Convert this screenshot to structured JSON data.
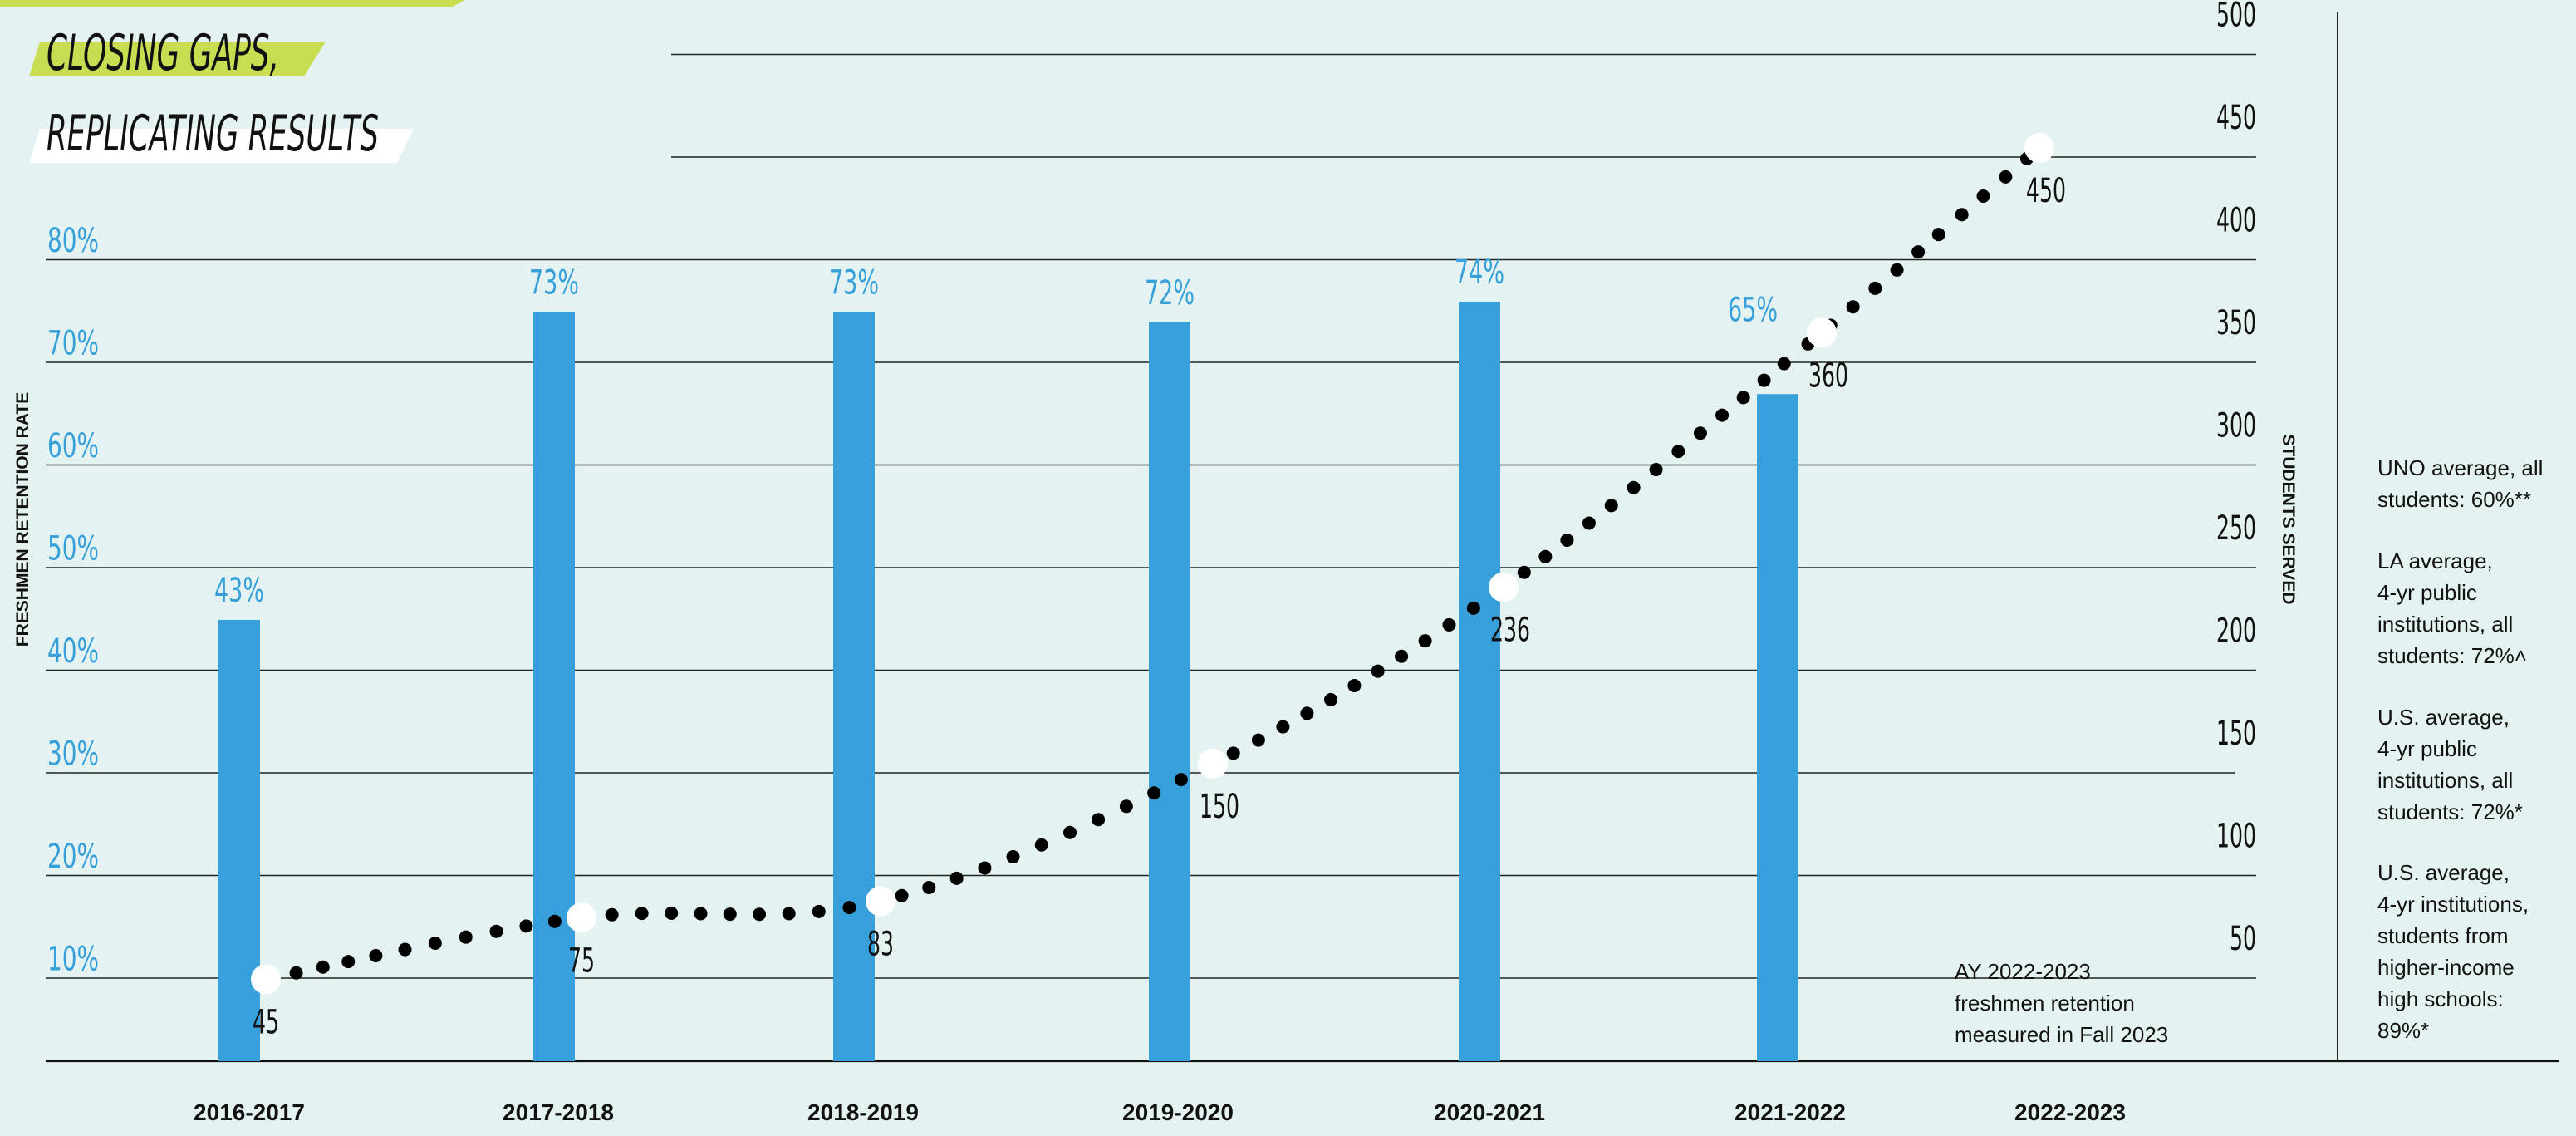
{
  "title": {
    "line1": "CLOSING GAPS,",
    "line2": "REPLICATING RESULTS"
  },
  "colors": {
    "background": "#e4f3f1",
    "bar": "#37a0da",
    "accent_lime": "#c8dd52",
    "text": "#111111"
  },
  "chart_data": {
    "type": "bar",
    "categories": [
      "2016-2017",
      "2017-2018",
      "2018-2019",
      "2019-2020",
      "2020-2021",
      "2021-2022",
      "2022-2023"
    ],
    "series": [
      {
        "values": [
          43,
          73,
          73,
          72,
          74,
          65,
          null
        ],
        "value_labels": [
          "43%",
          "73%",
          "73%",
          "72%",
          "74%",
          "65%",
          ""
        ]
      },
      {
        "values": [
          45,
          75,
          83,
          150,
          236,
          360,
          450
        ],
        "value_labels": [
          "45",
          "75",
          "83",
          "150",
          "236",
          "360",
          "450"
        ]
      }
    ],
    "ylabel": "FRESHMEN RETENTION RATE",
    "y2label": "STUDENTS SERVED",
    "ylim": [
      0,
      100
    ],
    "y2lim": [
      -10,
      500
    ],
    "yticks": [
      "10%",
      "20%",
      "30%",
      "40%",
      "50%",
      "60%",
      "70%",
      "80%"
    ],
    "y2ticks": [
      "50",
      "100",
      "150",
      "200",
      "250",
      "300",
      "350",
      "400",
      "450",
      "500"
    ],
    "grid": true,
    "note": "AY 2022-2023\nfreshmen retention\nmeasured in Fall 2023"
  },
  "sidebar": {
    "items": [
      "UNO average, all\nstudents: 60%**",
      "LA average,\n4-yr public\ninstitutions, all\nstudents: 72%˄",
      "U.S. average,\n4-yr public\ninstitutions, all\nstudents: 72%*",
      "U.S. average,\n4-yr institutions,\nstudents from\nhigher-income\nhigh schools:\n89%*"
    ]
  }
}
